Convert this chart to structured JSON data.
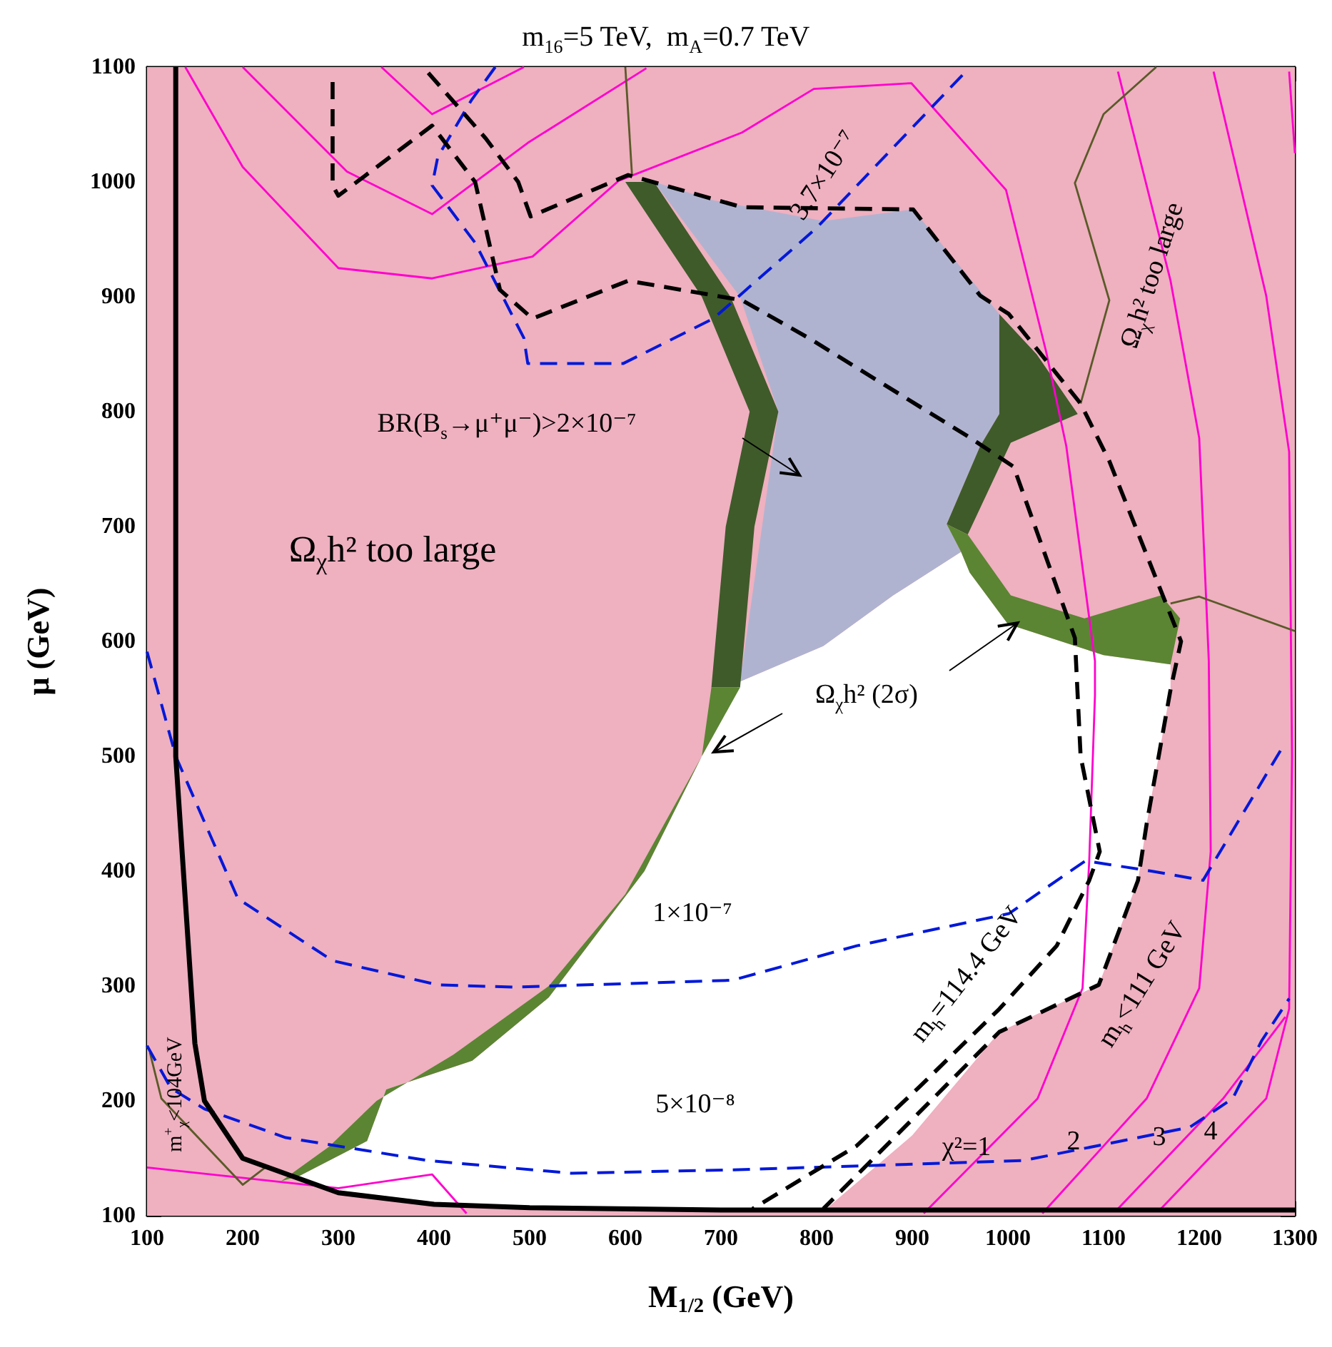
{
  "chart_data": {
    "type": "line",
    "title": "m$_{16}$=5 TeV,  m$_{A}$=0.7 TeV",
    "xlabel": "M$_{1/2}$ (GeV)",
    "ylabel": "μ (GeV)",
    "xlim": [
      100,
      1300
    ],
    "xticks": [
      100,
      200,
      300,
      400,
      500,
      600,
      700,
      800,
      900,
      1000,
      1100,
      1200,
      1300
    ],
    "ylim": [
      100,
      1100
    ],
    "yticks": [
      100,
      200,
      300,
      400,
      500,
      600,
      700,
      800,
      900,
      1000,
      1100
    ],
    "series": [
      {
        "type": "area",
        "color": "#ffffff",
        "x": [
          200,
          300,
          400,
          500,
          700,
          810,
          900,
          991,
          1095,
          1136,
          1145,
          1170,
          1170,
          1100,
          1000,
          960,
          951,
          880,
          807,
          720,
          680,
          620,
          520,
          440,
          350,
          330,
          260
        ],
        "values": [
          150,
          122,
          112,
          108,
          106,
          106,
          170,
          260,
          301,
          392,
          441,
          558,
          580,
          588,
          615,
          660,
          678,
          640,
          596,
          565,
          500,
          400,
          290,
          235,
          210,
          165,
          135
        ]
      },
      {
        "type": "area",
        "color": "#b0b3d0",
        "x": [
          630,
          692,
          807,
          901,
          991,
          991,
          971,
          936,
          951,
          880,
          807,
          720,
          760,
          720
        ],
        "values": [
          1000,
          984,
          966,
          976,
          885,
          798,
          770,
          702,
          678,
          640,
          596,
          565,
          800,
          900
        ]
      },
      {
        "type": "area",
        "color": "#3f5b2a",
        "x": [
          600,
          680,
          730,
          705,
          690,
          720,
          735,
          760,
          710,
          630
        ],
        "values": [
          1000,
          900,
          800,
          700,
          560,
          560,
          700,
          800,
          900,
          1000
        ]
      },
      {
        "type": "area",
        "color": "#5b8532",
        "x": [
          690,
          680,
          600,
          520,
          420,
          340,
          290,
          240,
          260,
          330,
          350,
          440,
          520,
          620,
          680,
          720
        ],
        "values": [
          560,
          500,
          380,
          300,
          240,
          200,
          160,
          130,
          135,
          165,
          210,
          235,
          290,
          400,
          500,
          560
        ]
      },
      {
        "type": "area",
        "color": "#3f5b2a",
        "x": [
          991,
          1030,
          1073,
          1003,
          958,
          936,
          971,
          991
        ],
        "values": [
          885,
          850,
          798,
          773,
          693,
          702,
          770,
          798
        ]
      },
      {
        "type": "area",
        "color": "#5b8532",
        "x": [
          936,
          958,
          1003,
          1080,
          1160,
          1180,
          1170,
          1100,
          1000,
          960,
          951
        ],
        "values": [
          702,
          693,
          640,
          620,
          640,
          620,
          580,
          588,
          615,
          660,
          678
        ]
      },
      {
        "color": "#ff00cc",
        "line_style": "solid",
        "x": [
          140,
          200,
          300,
          398,
          503,
          593,
          722,
          797,
          899,
          998,
          1040,
          1061,
          1091,
          1091,
          1085,
          1078,
          1031,
          912
        ],
        "values": [
          1100,
          1013,
          925,
          916,
          935,
          1001,
          1043,
          1081,
          1086,
          993,
          852,
          770,
          583,
          553,
          409,
          298,
          202,
          102
        ]
      },
      {
        "color": "#ff00cc",
        "line_style": "solid",
        "x": [
          200,
          309,
          398,
          498,
          622
        ],
        "values": [
          1100,
          1009,
          972,
          1034,
          1099
        ]
      },
      {
        "color": "#ff00cc",
        "line_style": "solid",
        "x": [
          345,
          398,
          494
        ],
        "values": [
          1100,
          1059,
          1100
        ]
      },
      {
        "color": "#ff00cc",
        "line_style": "solid",
        "x": [
          1115,
          1170,
          1200,
          1210,
          1212,
          1200,
          1145,
          1036
        ],
        "values": [
          1096,
          914,
          777,
          583,
          417,
          298,
          202,
          102
        ]
      },
      {
        "color": "#ff00cc",
        "line_style": "solid",
        "x": [
          1215,
          1270,
          1294,
          1297,
          1294,
          1270,
          1160
        ],
        "values": [
          1096,
          901,
          765,
          500,
          280,
          202,
          106
        ]
      },
      {
        "color": "#ff00cc",
        "line_style": "solid",
        "x": [
          1290,
          1225,
          1115
        ],
        "values": [
          273,
          202,
          106
        ]
      },
      {
        "color": "#ff00cc",
        "line_style": "solid",
        "x": [
          1294,
          1300
        ],
        "values": [
          1096,
          1025
        ]
      },
      {
        "color": "#ff00cc",
        "line_style": "solid",
        "x": [
          100,
          300,
          398,
          434
        ],
        "values": [
          142,
          124,
          136,
          102
        ]
      },
      {
        "color": "#5a5a28",
        "line_style": "solid",
        "x": [
          1155,
          1100,
          1070,
          1106,
          1076
        ],
        "values": [
          1100,
          1059,
          999,
          897,
          807
        ]
      },
      {
        "color": "#5a5a28",
        "line_style": "solid",
        "x": [
          1170,
          1200,
          1300
        ],
        "values": [
          633,
          639,
          609
        ]
      },
      {
        "color": "#5a5a28",
        "line_style": "solid",
        "x": [
          600,
          607
        ],
        "values": [
          1100,
          1006
        ]
      },
      {
        "color": "#5a5a28",
        "line_style": "solid",
        "x": [
          103,
          115,
          200,
          225
        ],
        "values": [
          242,
          202,
          127,
          143
        ]
      },
      {
        "color": "#0018d8",
        "line_style": "dashed",
        "x": [
          464,
          439,
          404,
          398,
          443,
          494,
          498,
          598,
          692,
          800,
          957
        ],
        "values": [
          1100,
          1071,
          1022,
          997,
          947,
          864,
          842,
          842,
          881,
          960,
          1097
        ]
      },
      {
        "color": "#0018d8",
        "line_style": "dashed",
        "x": [
          100,
          130,
          195,
          294,
          404,
          484,
          712,
          842,
          1001,
          1081,
          1150,
          1204,
          1290
        ],
        "values": [
          591,
          500,
          376,
          322,
          301,
          299,
          305,
          335,
          363,
          409,
          400,
          392,
          512
        ]
      },
      {
        "color": "#0018d8",
        "line_style": "dashed",
        "x": [
          100,
          125,
          160,
          245,
          394,
          543,
          718,
          1016,
          1190,
          1235,
          1265,
          1294
        ],
        "values": [
          248,
          211,
          193,
          168,
          148,
          137,
          140,
          148,
          177,
          202,
          252,
          289
        ]
      },
      {
        "color": "#000000",
        "line_style": "dashed",
        "x": [
          394,
          454,
          488,
          501,
          603,
          722,
          901,
          971,
          1001,
          1076,
          1106,
          1181,
          1170,
          1145,
          1136,
          1095,
          991,
          807
        ],
        "values": [
          1095,
          1038,
          1000,
          970,
          1006,
          978,
          976,
          901,
          885,
          807,
          757,
          600,
          558,
          441,
          392,
          301,
          260,
          106
        ]
      },
      {
        "color": "#000000",
        "line_style": "dashed",
        "x": [
          294,
          294,
          300,
          398,
          443,
          469,
          503,
          603,
          722,
          792,
          961,
          1006,
          1070,
          1076,
          1096,
          1085,
          1051,
          991,
          906,
          842,
          733
        ],
        "values": [
          1087,
          997,
          988,
          1049,
          1000,
          906,
          881,
          914,
          897,
          864,
          777,
          752,
          603,
          500,
          417,
          392,
          335,
          280,
          211,
          161,
          106
        ]
      },
      {
        "color": "#000000",
        "line_style": "solid",
        "x": [
          130,
          130,
          150,
          160,
          200,
          300,
          400,
          500,
          700,
          1300
        ],
        "values": [
          1100,
          500,
          250,
          200,
          150,
          120,
          110,
          107,
          105,
          105
        ]
      }
    ],
    "bands": [
      {
        "axis": "y",
        "from": 100,
        "to": 1100,
        "color": "#efb0c0"
      }
    ],
    "annotations": [
      "Ω$_{χ}$h² too large",
      "BR(B$_{s}$→μ⁺μ⁻)>2×10⁻⁷",
      "3.7×10⁻⁷",
      "Ω$_{χ}$h² too large",
      {
        "text": "Ω$_{χ}$h² (2σ)",
        "x": 1010,
        "y": 616
      },
      "1×10⁻⁷",
      "5×10⁻⁸",
      "m$_{h}$=114.4 GeV",
      "m$_{h}$<111 GeV",
      "χ²=1",
      "2",
      "3",
      "4",
      "m$^{+}$$_{χ}$<104GeV"
    ]
  }
}
